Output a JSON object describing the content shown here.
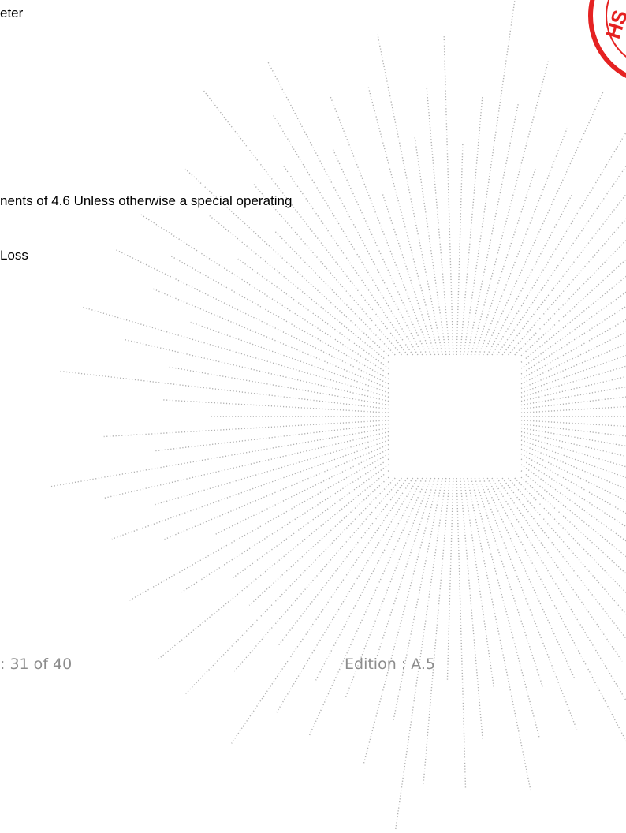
{
  "document": {
    "lines": [
      "eter",
      "nents of 4.6 Unless otherwise a special operating",
      " Loss"
    ]
  },
  "footer": {
    "page_info": ": 31 of 40",
    "edition": "Edition : A.5"
  },
  "colors": {
    "text": "#000000",
    "footer_text": "#8c8c8c",
    "watermark": "#b0b0b0",
    "seal": "#e52222"
  },
  "seal": {
    "text": "HS"
  }
}
